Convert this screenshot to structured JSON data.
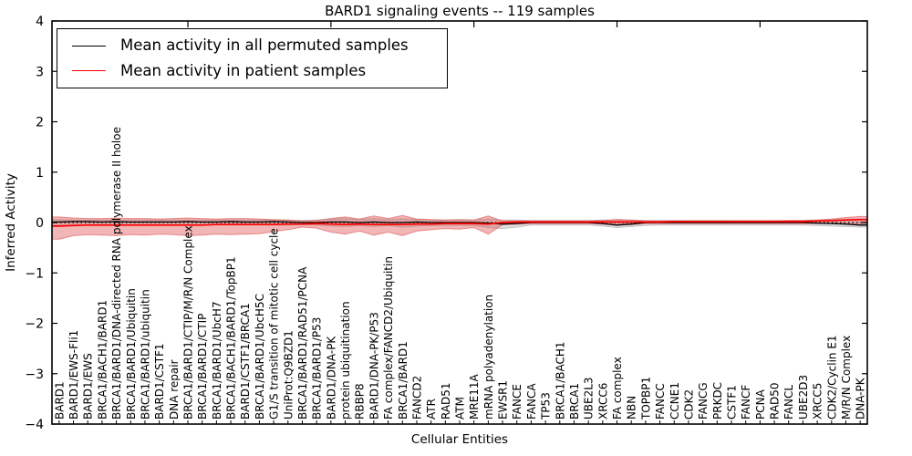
{
  "chart_data": {
    "type": "line",
    "title": "BARD1 signaling events -- 119 samples",
    "xlabel": "Cellular Entities",
    "ylabel": "Inferred Activity",
    "ylim": [
      -4,
      4
    ],
    "yticks": [
      4,
      3,
      2,
      1,
      0,
      -1,
      -2,
      -3,
      -4
    ],
    "grid": false,
    "legend_position": "upper left",
    "zero_line": 0,
    "colors": {
      "permuted": "#000000",
      "patient": "#ff0000",
      "patient_band_fill": "#e05050",
      "permuted_band_fill": "#8c8c8c"
    },
    "legend": [
      {
        "label": "Mean activity in all permuted samples",
        "color": "#000000"
      },
      {
        "label": "Mean activity in patient samples",
        "color": "#ff0000"
      }
    ],
    "categories": [
      "BARD1",
      "BARD1/EWS-Fli1",
      "BARD1/EWS",
      "BRCA1/BACH1/BARD1",
      "BRCA1/BARD1/DNA-directed RNA polymerase II holoe",
      "BRCA1/BARD1/Ubiquitin",
      "BRCA1/BARD1/ubiquitin",
      "BARD1/CSTF1",
      "DNA repair",
      "BRCA1/BARD1/CTIP/M/R/N Complex",
      "BRCA1/BARD1/CTIP",
      "BRCA1/BARD1/UbcH7",
      "BRCA1/BACH1/BARD1/TopBP1",
      "BARD1/CSTF1/BRCA1",
      "BRCA1/BARD1/UbcH5C",
      "G1/S transition of mitotic cell cycle",
      "UniProt:Q9BZD1",
      "BRCA1/BARD1/RAD51/PCNA",
      "BRCA1/BARD1/P53",
      "BARD1/DNA-PK",
      "protein ubiquitination",
      "RBBP8",
      "BARD1/DNA-PK/P53",
      "FA complex/FANCD2/Ubiquitin",
      "BRCA1/BARD1",
      "FANCD2",
      "ATR",
      "RAD51",
      "ATM",
      "MRE11A",
      "mRNA polyadenylation",
      "EWSR1",
      "FANCE",
      "FANCA",
      "TP53",
      "BRCA1/BACH1",
      "BRCA1",
      "UBE2L3",
      "XRCC6",
      "FA complex",
      "NBN",
      "TOPBP1",
      "FANCC",
      "CCNE1",
      "CDK2",
      "FANCG",
      "PRKDC",
      "CSTF1",
      "FANCF",
      "PCNA",
      "RAD50",
      "FANCL",
      "UBE2D3",
      "XRCC5",
      "CDK2/Cyclin E1",
      "M/R/N Complex",
      "DNA-PK"
    ],
    "series": [
      {
        "name": "Mean activity in all permuted samples",
        "color": "#000000",
        "values": [
          0.01,
          0.02,
          0.02,
          0.01,
          0.02,
          0.01,
          0.01,
          0.01,
          0.01,
          0.02,
          0.01,
          0.01,
          0.02,
          0.01,
          0.01,
          0.02,
          0.01,
          0.0,
          0.0,
          0.01,
          0.01,
          0.0,
          0.01,
          0.0,
          0.0,
          0.01,
          0.0,
          0.0,
          0.0,
          0.0,
          -0.01,
          -0.03,
          -0.02,
          0.0,
          0.0,
          0.0,
          0.0,
          0.0,
          -0.02,
          -0.05,
          -0.03,
          0.0,
          0.0,
          0.0,
          0.0,
          0.0,
          0.0,
          0.0,
          0.0,
          0.0,
          0.0,
          0.0,
          0.0,
          -0.01,
          -0.02,
          -0.03,
          -0.05
        ]
      },
      {
        "name": "Mean activity in patient samples",
        "color": "#ff0000",
        "values": [
          -0.07,
          -0.06,
          -0.05,
          -0.05,
          -0.05,
          -0.05,
          -0.05,
          -0.05,
          -0.05,
          -0.05,
          -0.05,
          -0.04,
          -0.04,
          -0.04,
          -0.04,
          -0.04,
          -0.03,
          -0.03,
          -0.02,
          -0.03,
          -0.04,
          -0.03,
          -0.04,
          -0.04,
          -0.04,
          -0.03,
          -0.03,
          -0.02,
          -0.02,
          -0.02,
          -0.03,
          0.0,
          0.01,
          0.01,
          0.01,
          0.01,
          0.01,
          0.01,
          0.01,
          0.01,
          0.01,
          0.01,
          0.01,
          0.02,
          0.02,
          0.02,
          0.02,
          0.02,
          0.02,
          0.02,
          0.02,
          0.02,
          0.02,
          0.03,
          0.04,
          0.05,
          0.06
        ]
      }
    ],
    "bands": [
      {
        "name": "permuted-range",
        "color": "#8c8c8c",
        "opacity": 0.28,
        "upper": [
          0.06,
          0.05,
          0.05,
          0.05,
          0.05,
          0.05,
          0.05,
          0.05,
          0.05,
          0.05,
          0.05,
          0.05,
          0.05,
          0.05,
          0.05,
          0.05,
          0.05,
          0.04,
          0.05,
          0.07,
          0.08,
          0.06,
          0.08,
          0.06,
          0.08,
          0.06,
          0.05,
          0.05,
          0.05,
          0.05,
          0.07,
          0.05,
          0.05,
          0.04,
          0.04,
          0.04,
          0.04,
          0.04,
          0.05,
          0.06,
          0.05,
          0.04,
          0.04,
          0.04,
          0.04,
          0.04,
          0.04,
          0.04,
          0.04,
          0.04,
          0.04,
          0.04,
          0.04,
          0.05,
          0.05,
          0.06,
          0.06
        ],
        "lower": [
          -0.06,
          -0.05,
          -0.05,
          -0.05,
          -0.05,
          -0.05,
          -0.05,
          -0.05,
          -0.05,
          -0.05,
          -0.05,
          -0.05,
          -0.05,
          -0.05,
          -0.05,
          -0.05,
          -0.05,
          -0.04,
          -0.05,
          -0.07,
          -0.08,
          -0.06,
          -0.08,
          -0.06,
          -0.09,
          -0.07,
          -0.06,
          -0.06,
          -0.06,
          -0.06,
          -0.1,
          -0.12,
          -0.09,
          -0.05,
          -0.05,
          -0.05,
          -0.05,
          -0.05,
          -0.07,
          -0.1,
          -0.08,
          -0.06,
          -0.05,
          -0.05,
          -0.05,
          -0.05,
          -0.05,
          -0.05,
          -0.05,
          -0.05,
          -0.05,
          -0.05,
          -0.05,
          -0.06,
          -0.07,
          -0.08,
          -0.09
        ]
      },
      {
        "name": "patient-range",
        "color": "#e05050",
        "opacity": 0.42,
        "upper": [
          0.11,
          0.09,
          0.08,
          0.08,
          0.09,
          0.08,
          0.08,
          0.07,
          0.08,
          0.09,
          0.08,
          0.07,
          0.08,
          0.08,
          0.07,
          0.06,
          0.05,
          0.03,
          0.04,
          0.08,
          0.11,
          0.07,
          0.13,
          0.08,
          0.14,
          0.07,
          0.06,
          0.05,
          0.06,
          0.05,
          0.13,
          0.03,
          0.03,
          0.03,
          0.03,
          0.03,
          0.03,
          0.03,
          0.04,
          0.06,
          0.05,
          0.03,
          0.03,
          0.03,
          0.03,
          0.03,
          0.03,
          0.03,
          0.03,
          0.03,
          0.03,
          0.04,
          0.04,
          0.05,
          0.07,
          0.1,
          0.12
        ],
        "lower": [
          -0.33,
          -0.26,
          -0.24,
          -0.25,
          -0.26,
          -0.24,
          -0.25,
          -0.23,
          -0.24,
          -0.26,
          -0.25,
          -0.23,
          -0.24,
          -0.23,
          -0.22,
          -0.18,
          -0.14,
          -0.09,
          -0.11,
          -0.19,
          -0.23,
          -0.17,
          -0.25,
          -0.19,
          -0.26,
          -0.17,
          -0.14,
          -0.12,
          -0.13,
          -0.1,
          -0.23,
          -0.04,
          -0.03,
          -0.02,
          -0.02,
          -0.02,
          -0.02,
          -0.02,
          -0.03,
          -0.05,
          -0.04,
          -0.02,
          -0.02,
          -0.02,
          -0.02,
          -0.02,
          -0.02,
          -0.02,
          -0.02,
          -0.02,
          -0.02,
          -0.02,
          -0.02,
          -0.02,
          -0.02,
          -0.03,
          -0.04
        ]
      }
    ]
  }
}
